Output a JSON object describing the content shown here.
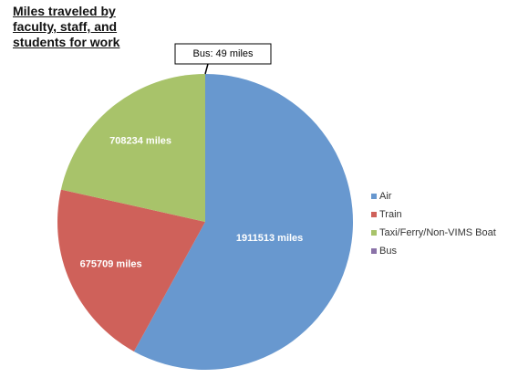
{
  "chart_data": {
    "type": "pie",
    "title": "Miles traveled by faculty, staff, and students for work",
    "categories": [
      "Air",
      "Train",
      "Taxi/Ferry/Non-VIMS Boat",
      "Bus"
    ],
    "values": [
      1911513,
      675709,
      708234,
      49
    ],
    "value_labels": [
      "1911513 miles",
      "675709 miles",
      "708234 miles",
      "Bus: 49 miles"
    ],
    "colors": [
      "#6898cf",
      "#cf615a",
      "#a8c36a",
      "#8a72a8"
    ],
    "legend": "right"
  }
}
